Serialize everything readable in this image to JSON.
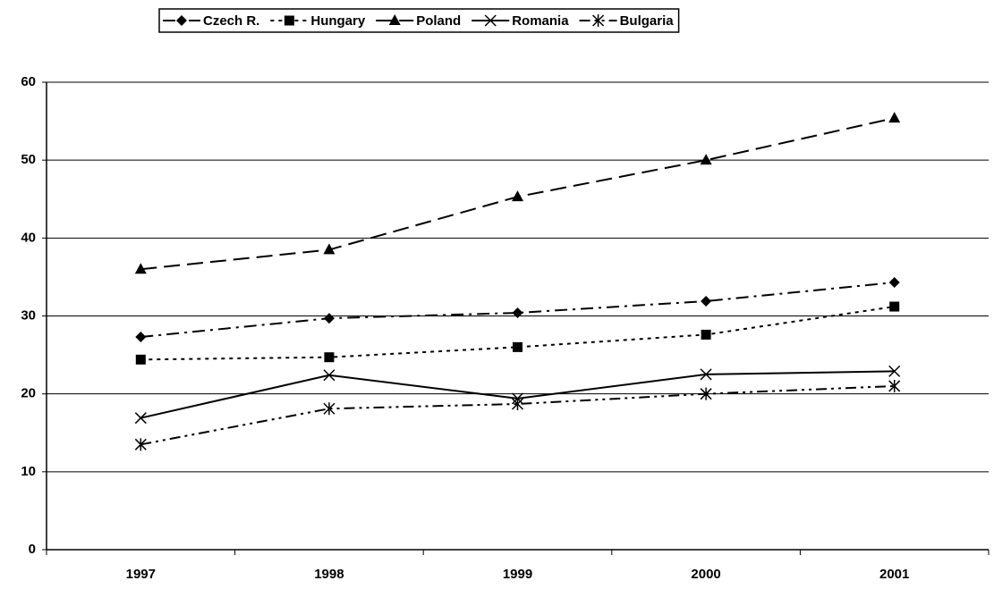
{
  "chart_data": {
    "type": "line",
    "categories": [
      "1997",
      "1998",
      "1999",
      "2000",
      "2001"
    ],
    "series": [
      {
        "name": "Czech R.",
        "color": "#000000",
        "marker": "diamond",
        "line_style": "dash-dot",
        "values": [
          27.3,
          29.7,
          30.4,
          31.9,
          34.3
        ]
      },
      {
        "name": "Hungary",
        "color": "#000000",
        "marker": "square",
        "line_style": "short-dash",
        "values": [
          24.4,
          24.7,
          26.0,
          27.6,
          31.2
        ]
      },
      {
        "name": "Poland",
        "color": "#000000",
        "marker": "triangle",
        "line_style": "long-dash",
        "values": [
          36.0,
          38.5,
          45.3,
          50.0,
          55.4
        ]
      },
      {
        "name": "Romania",
        "color": "#000000",
        "marker": "x",
        "line_style": "solid",
        "values": [
          16.9,
          22.4,
          19.4,
          22.5,
          22.9
        ]
      },
      {
        "name": "Bulgaria",
        "color": "#000000",
        "marker": "star",
        "line_style": "dash-dot-dot",
        "values": [
          13.5,
          18.1,
          18.7,
          20.0,
          21.0
        ]
      }
    ],
    "ylim": [
      0,
      60
    ],
    "yticks": [
      0,
      10,
      20,
      30,
      40,
      50,
      60
    ],
    "grid": true,
    "legend": "top"
  }
}
